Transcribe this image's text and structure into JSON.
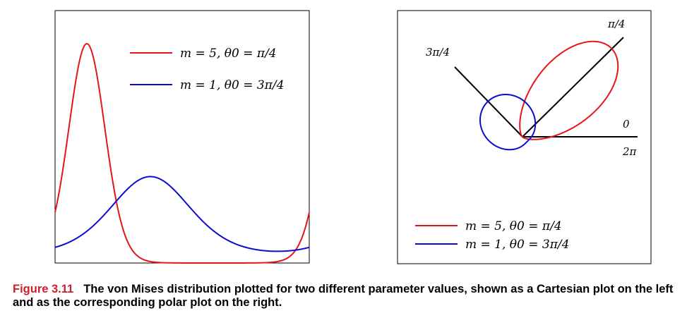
{
  "chart_data": [
    {
      "type": "line",
      "coordinate": "cartesian",
      "x_domain": [
        0,
        6.2832
      ],
      "series": [
        {
          "name": "m = 5, θ0 = π/4",
          "m": 5,
          "theta0": 0.7854,
          "color": "#e8141b"
        },
        {
          "name": "m = 1, θ0 = 3π/4",
          "m": 1,
          "theta0": 2.3562,
          "color": "#0b0bd6"
        }
      ],
      "legend": {
        "placement": "top-right",
        "entries": [
          {
            "label": "m = 5,  θ0 = π/4",
            "color": "#e8141b"
          },
          {
            "label": "m = 1,  θ0 = 3π/4",
            "color": "#0b0bd6"
          }
        ]
      },
      "grid": false
    },
    {
      "type": "line",
      "coordinate": "polar",
      "series": [
        {
          "name": "m = 5, θ0 = π/4",
          "m": 5,
          "theta0": 0.7854,
          "color": "#e8141b"
        },
        {
          "name": "m = 1, θ0 = 3π/4",
          "m": 1,
          "theta0": 2.3562,
          "color": "#0b0bd6"
        }
      ],
      "direction_labels": {
        "pi_over_4": "π/4",
        "three_pi_over_4": "3π/4",
        "zero": "0",
        "two_pi": "2π"
      },
      "legend": {
        "placement": "bottom-left",
        "entries": [
          {
            "label": "m = 5,  θ0 = π/4",
            "color": "#e8141b"
          },
          {
            "label": "m = 1,  θ0 = 3π/4",
            "color": "#0b0bd6"
          }
        ]
      },
      "grid": false
    }
  ],
  "caption": {
    "label": "Figure 3.11",
    "text": "The von Mises distribution plotted for two different parameter values, shown as a Cartesian plot on the left and as the corresponding polar plot on the right."
  }
}
